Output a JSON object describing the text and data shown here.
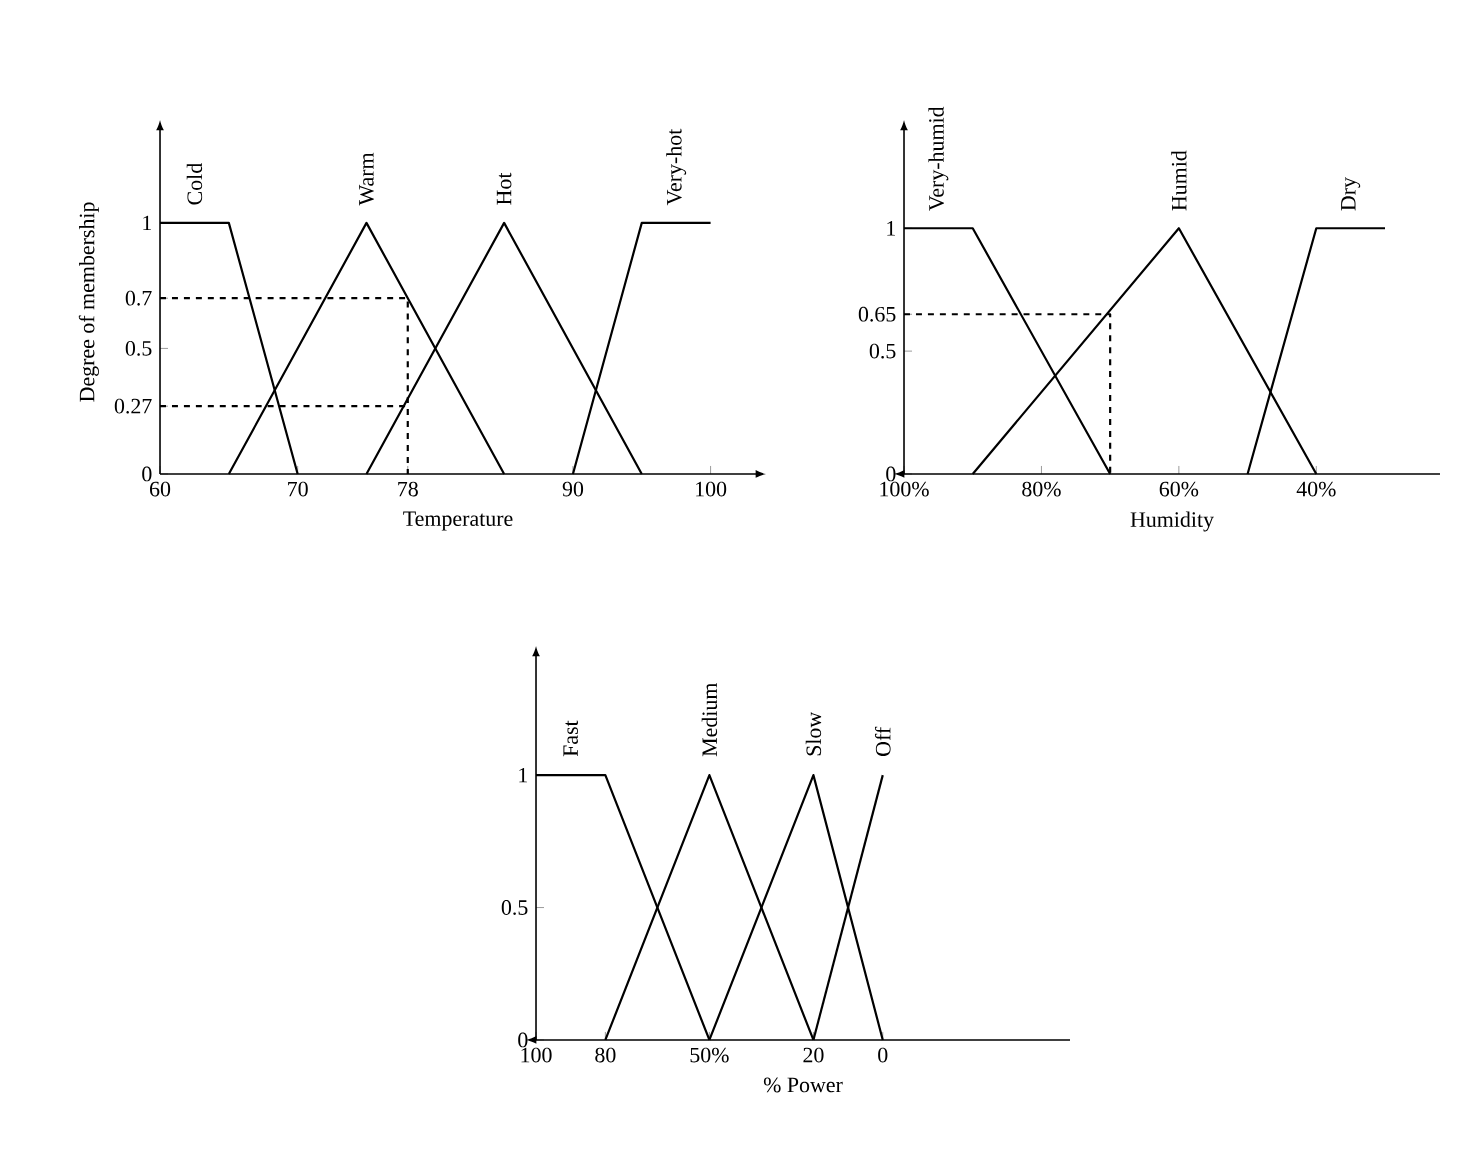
{
  "chart_data": [
    {
      "type": "line",
      "xlabel": "Temperature",
      "ylabel": "Degree of membership",
      "xlim": [
        60,
        103.3
      ],
      "ylim": [
        0,
        1.37
      ],
      "xticks": [
        60,
        70,
        78,
        90,
        100
      ],
      "yticks": [
        0,
        0.27,
        0.5,
        0.7,
        1
      ],
      "series": [
        {
          "name": "Cold",
          "color": "#000000",
          "x": [
            60,
            65,
            70
          ],
          "values": [
            1,
            1,
            0
          ]
        },
        {
          "name": "Warm",
          "color": "#000000",
          "x": [
            65,
            75,
            85
          ],
          "values": [
            0,
            1,
            0
          ]
        },
        {
          "name": "Hot",
          "color": "#000000",
          "x": [
            75,
            85,
            95
          ],
          "values": [
            0,
            1,
            0
          ]
        },
        {
          "name": "Very-hot",
          "color": "#000000",
          "x": [
            90,
            95,
            100
          ],
          "values": [
            0,
            1,
            1
          ]
        },
        {
          "color": "#000000",
          "line_style": "dashed",
          "x": [
            60,
            78,
            78
          ],
          "values": [
            0.7,
            0.7,
            0
          ]
        },
        {
          "color": "#000000",
          "line_style": "dashed",
          "x": [
            60,
            78
          ],
          "values": [
            0.27,
            0.27
          ]
        }
      ]
    },
    {
      "type": "line",
      "xlabel": "Humidity",
      "xlim": [
        100,
        22
      ],
      "ylim": [
        0,
        1.4
      ],
      "xticks": [
        {
          "value": 100,
          "label": "100%"
        },
        {
          "value": 80,
          "label": "80%"
        },
        {
          "value": 60,
          "label": "60%"
        },
        {
          "value": 40,
          "label": "40%"
        }
      ],
      "yticks": [
        0,
        0.5,
        0.65,
        1
      ],
      "series": [
        {
          "name": "Very-humid",
          "color": "#000000",
          "x": [
            100,
            90,
            70
          ],
          "values": [
            1,
            1,
            0
          ]
        },
        {
          "name": "Humid",
          "color": "#000000",
          "x": [
            90,
            60,
            40
          ],
          "values": [
            0,
            1,
            0
          ]
        },
        {
          "name": "Dry",
          "color": "#000000",
          "x": [
            50,
            40,
            30
          ],
          "values": [
            0,
            1,
            1
          ]
        },
        {
          "color": "#000000",
          "line_style": "dashed",
          "x": [
            100,
            70,
            70
          ],
          "values": [
            0.65,
            0.65,
            0
          ]
        }
      ]
    },
    {
      "type": "line",
      "xlabel": "% Power",
      "xlim": [
        100,
        -54
      ],
      "ylim": [
        0,
        1.45
      ],
      "xticks": [
        100,
        80,
        {
          "value": 50,
          "label": "50%"
        },
        20,
        0
      ],
      "yticks": [
        0,
        0.5,
        1
      ],
      "series": [
        {
          "name": "Fast",
          "color": "#000000",
          "x": [
            100,
            80,
            50
          ],
          "values": [
            1,
            1,
            0
          ]
        },
        {
          "name": "Medium",
          "color": "#000000",
          "x": [
            80,
            50,
            20
          ],
          "values": [
            0,
            1,
            0
          ]
        },
        {
          "name": "Slow",
          "color": "#000000",
          "x": [
            50,
            20,
            0
          ],
          "values": [
            0,
            1,
            0
          ]
        },
        {
          "name": "Off",
          "color": "#000000",
          "x": [
            20,
            0
          ],
          "values": [
            0,
            1
          ]
        }
      ]
    }
  ]
}
